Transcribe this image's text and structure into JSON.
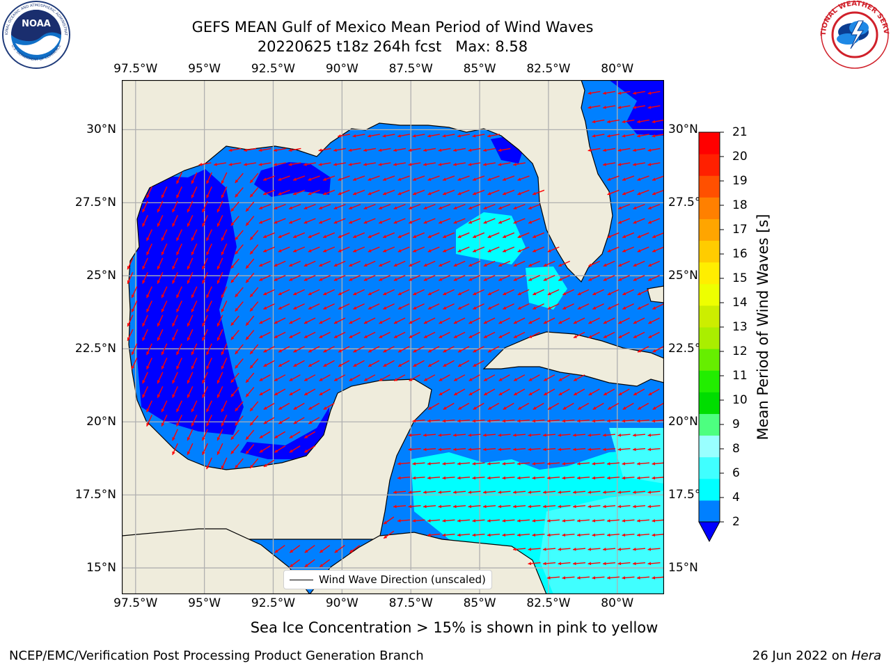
{
  "header": {
    "title_line1": "GEFS MEAN Gulf of Mexico Mean Period of Wind Waves",
    "title_line2": "20220625 t18z 264h fcst   Max: 8.58"
  },
  "logos": {
    "left": "noaa-logo",
    "left_text_top": "NATIONAL OCEANIC AND ATMOSPHERIC ADMINISTRATION",
    "left_text_center": "NOAA",
    "left_text_bottom": "U.S. DEPARTMENT OF COMMERCE",
    "right": "national-weather-service-logo",
    "right_text": "NATIONAL WEATHER SERVICE"
  },
  "map": {
    "lon_ticks": [
      "97.5°W",
      "95°W",
      "92.5°W",
      "90°W",
      "87.5°W",
      "85°W",
      "82.5°W",
      "80°W"
    ],
    "lat_ticks": [
      "30°N",
      "27.5°N",
      "25°N",
      "22.5°N",
      "20°N",
      "17.5°N",
      "15°N"
    ],
    "lon_values": [
      -97.5,
      -95,
      -92.5,
      -90,
      -87.5,
      -85,
      -82.5,
      -80
    ],
    "lat_values": [
      30,
      27.5,
      25,
      22.5,
      20,
      17.5,
      15
    ],
    "lon_range": [
      -98,
      -78.3
    ],
    "lat_range": [
      14.1,
      31.7
    ],
    "land_color": "#efecdc",
    "grid_color": "#b0b0b0",
    "arrow_color": "#ff0000",
    "legend_label": "Wind Wave Direction (unscaled)"
  },
  "colorbar": {
    "title": "Mean Period of Wind Waves [s]",
    "ticks": [
      "2",
      "4",
      "6",
      "8",
      "9",
      "10",
      "11",
      "12",
      "13",
      "14",
      "15",
      "16",
      "17",
      "18",
      "19",
      "20",
      "21"
    ],
    "under_color": "#0000ff",
    "colors": [
      "#0080ff",
      "#00ffff",
      "#40ffff",
      "#99ffff",
      "#4dff80",
      "#00dd00",
      "#22ee00",
      "#66ee00",
      "#aaee00",
      "#ccee00",
      "#eeff00",
      "#ffee00",
      "#ffcc00",
      "#ffa500",
      "#ff8000",
      "#ff5000",
      "#ff2000",
      "#ff0000"
    ]
  },
  "annotation": "Sea Ice Concentration > 15% is shown in pink to yellow",
  "footer": {
    "left": "NCEP/EMC/Verification Post Processing Product Generation Branch",
    "date": "26 Jun 2022 on ",
    "machine": "Hera"
  }
}
